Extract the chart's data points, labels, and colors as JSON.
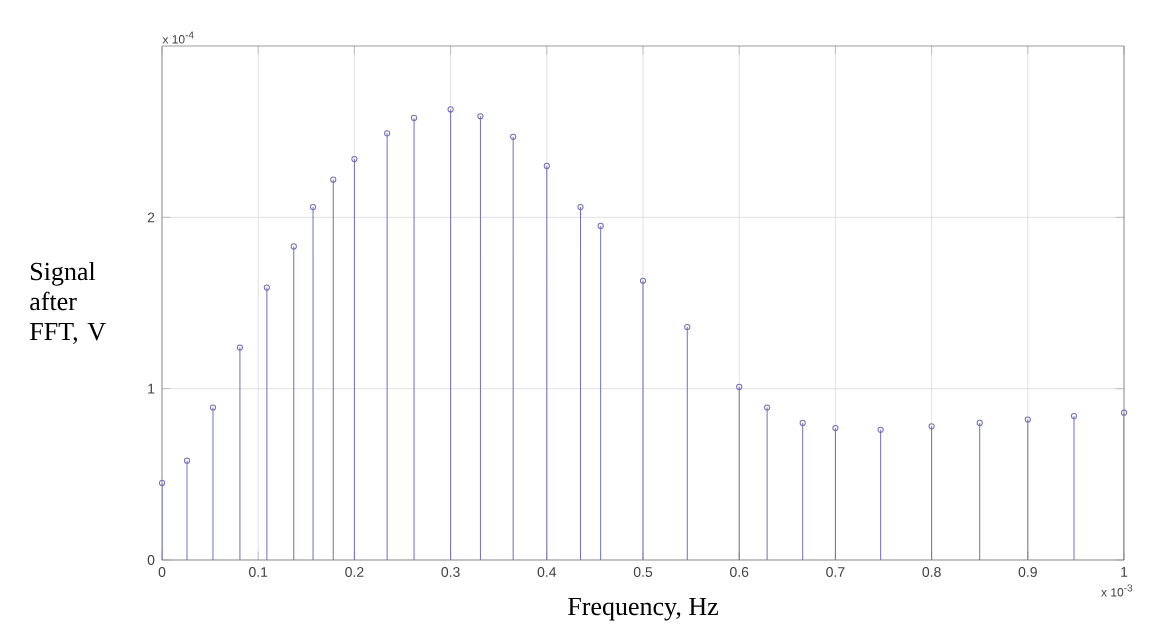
{
  "chart_data": {
    "type": "lollipop",
    "xlabel": "Frequency, Hz",
    "ylabel": "Signal after FFT, V",
    "annotations": [
      "x 10$^{-4}$",
      "x 10$^{-3}$"
    ],
    "x": [
      0,
      0.026,
      0.053,
      0.081,
      0.109,
      0.137,
      0.157,
      0.178,
      0.2,
      0.234,
      0.262,
      0.3,
      0.331,
      0.365,
      0.4,
      0.435,
      0.456,
      0.5,
      0.546,
      0.6,
      0.629,
      0.666,
      0.7,
      0.747,
      0.8,
      0.85,
      0.9,
      0.948,
      1.0
    ],
    "values": [
      0.45,
      0.58,
      0.89,
      1.24,
      1.59,
      1.83,
      2.06,
      2.22,
      2.34,
      2.49,
      2.58,
      2.63,
      2.59,
      2.47,
      2.3,
      2.06,
      1.95,
      1.63,
      1.36,
      1.01,
      0.89,
      0.8,
      0.77,
      0.76,
      0.78,
      0.8,
      0.82,
      0.84,
      0.86
    ],
    "color": "#7070b8",
    "marker": "circle",
    "grid": true,
    "xlim": [
      0,
      1
    ],
    "ylim": [
      0,
      3
    ],
    "xticks": [
      0,
      0.1,
      0.2,
      0.3,
      0.4,
      0.5,
      0.6,
      0.7,
      0.8,
      0.9,
      1
    ],
    "yticks": [
      0,
      1,
      2
    ]
  }
}
